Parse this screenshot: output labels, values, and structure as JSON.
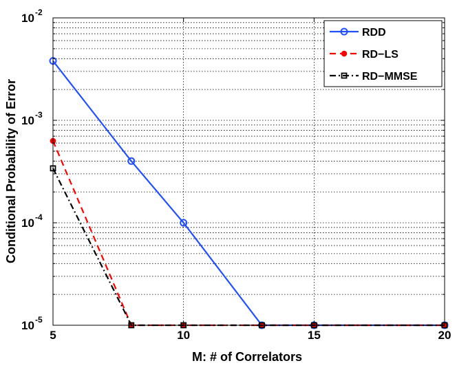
{
  "chart_data": {
    "type": "line",
    "title": "",
    "xlabel": "M: # of Correlators",
    "ylabel": "Conditional Probability of Error",
    "xlim": [
      5,
      20
    ],
    "ylim": [
      1e-05,
      0.01
    ],
    "yscale": "log",
    "grid": true,
    "legend_position": "top-right",
    "x_ticks": [
      5,
      10,
      15,
      20
    ],
    "x_tick_labels": [
      "5",
      "10",
      "15",
      "20"
    ],
    "y_ticks": [
      1e-05,
      0.0001,
      0.001,
      0.01
    ],
    "y_tick_labels": [
      {
        "base": "10",
        "exp": "-5"
      },
      {
        "base": "10",
        "exp": "-4"
      },
      {
        "base": "10",
        "exp": "-3"
      },
      {
        "base": "10",
        "exp": "-2"
      }
    ],
    "series": [
      {
        "name": "RDD",
        "color": "#1f4fff",
        "line": "solid",
        "marker": "circle",
        "x": [
          5,
          8,
          10,
          13,
          15,
          20
        ],
        "y": [
          0.0038,
          0.0004,
          0.0001,
          1e-05,
          1e-05,
          1e-05
        ]
      },
      {
        "name": "RD−LS",
        "color": "#ff0000",
        "line": "dashed",
        "marker": "dot",
        "x": [
          5,
          8,
          10,
          13,
          15,
          20
        ],
        "y": [
          0.00063,
          1e-05,
          1e-05,
          1e-05,
          1e-05,
          1e-05
        ]
      },
      {
        "name": "RD−MMSE",
        "color": "#000000",
        "line": "dashdot",
        "marker": "square",
        "x": [
          5,
          8,
          10,
          13,
          15,
          20
        ],
        "y": [
          0.00034,
          1e-05,
          1e-05,
          1e-05,
          1e-05,
          1e-05
        ]
      }
    ]
  }
}
